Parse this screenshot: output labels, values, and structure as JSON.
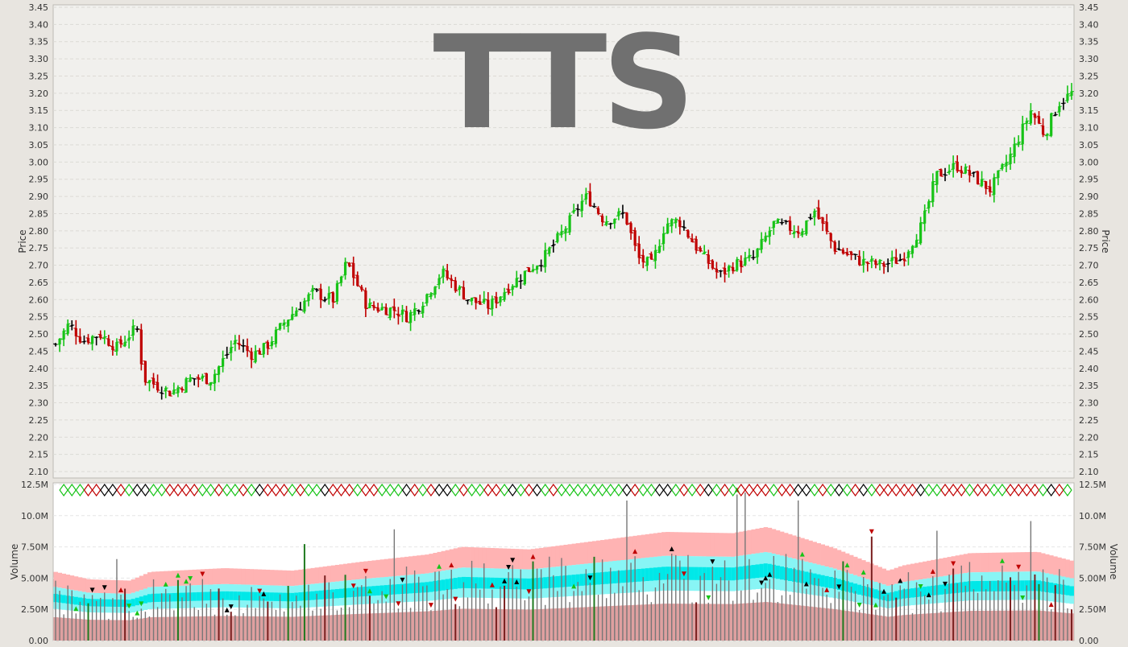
{
  "watermark": "TTS",
  "colors": {
    "background": "#e8e5e0",
    "plot_bg": "#f1f0ed",
    "up": "#17c317",
    "down": "#c00000",
    "neutral": "#000000",
    "band_outer": "#ffb3b3",
    "band_mid": "#88f5f5",
    "band_inner": "#00e8e8",
    "volume_base": "#dfa0a0",
    "volume_bar": "#777777",
    "watermark": "#707070"
  },
  "chart_data": [
    {
      "type": "ohlc",
      "title": "TTS",
      "ylabel": "Price",
      "ylim": [
        2.08,
        3.45
      ],
      "ticks": [
        "2.10",
        "2.15",
        "2.20",
        "2.25",
        "2.30",
        "2.35",
        "2.40",
        "2.45",
        "2.50",
        "2.55",
        "2.60",
        "2.65",
        "2.70",
        "2.75",
        "2.80",
        "2.85",
        "2.90",
        "2.95",
        "3.00",
        "3.05",
        "3.10",
        "3.15",
        "3.20",
        "3.25",
        "3.30",
        "3.35",
        "3.40",
        "3.45"
      ],
      "grid": true,
      "bar_count": 250,
      "anchors": [
        [
          0,
          2.47
        ],
        [
          4,
          2.53
        ],
        [
          8,
          2.48
        ],
        [
          13,
          2.5
        ],
        [
          18,
          2.46
        ],
        [
          24,
          2.52
        ],
        [
          26,
          2.37
        ],
        [
          34,
          2.33
        ],
        [
          40,
          2.37
        ],
        [
          46,
          2.37
        ],
        [
          53,
          2.48
        ],
        [
          58,
          2.44
        ],
        [
          62,
          2.46
        ],
        [
          68,
          2.54
        ],
        [
          76,
          2.62
        ],
        [
          82,
          2.6
        ],
        [
          86,
          2.71
        ],
        [
          92,
          2.58
        ],
        [
          100,
          2.57
        ],
        [
          104,
          2.55
        ],
        [
          108,
          2.59
        ],
        [
          114,
          2.68
        ],
        [
          122,
          2.6
        ],
        [
          128,
          2.58
        ],
        [
          134,
          2.64
        ],
        [
          140,
          2.69
        ],
        [
          144,
          2.72
        ],
        [
          150,
          2.8
        ],
        [
          155,
          2.88
        ],
        [
          157,
          2.9
        ],
        [
          162,
          2.83
        ],
        [
          168,
          2.85
        ],
        [
          172,
          2.72
        ],
        [
          176,
          2.7
        ],
        [
          180,
          2.82
        ],
        [
          184,
          2.83
        ],
        [
          190,
          2.74
        ],
        [
          196,
          2.67
        ],
        [
          200,
          2.7
        ],
        [
          206,
          2.72
        ],
        [
          212,
          2.82
        ],
        [
          220,
          2.8
        ],
        [
          224,
          2.86
        ],
        [
          230,
          2.75
        ],
        [
          238,
          2.71
        ],
        [
          244,
          2.7
        ],
        [
          250,
          2.72
        ],
        [
          256,
          2.82
        ],
        [
          260,
          2.96
        ],
        [
          266,
          2.99
        ],
        [
          272,
          2.95
        ],
        [
          276,
          2.92
        ],
        [
          282,
          3.02
        ],
        [
          288,
          3.15
        ],
        [
          292,
          3.08
        ],
        [
          296,
          3.17
        ],
        [
          300,
          3.2
        ]
      ]
    },
    {
      "type": "bar",
      "ylabel": "Volume",
      "ylim": [
        0,
        12.5
      ],
      "unit": "M",
      "ticks": [
        "0.00",
        "2.50M",
        "5.00M",
        "7.50M",
        "10.0M",
        "12.5M"
      ],
      "grid": true,
      "band_anchors": [
        [
          0,
          5.5
        ],
        [
          10,
          4.9
        ],
        [
          22,
          4.8
        ],
        [
          28,
          5.5
        ],
        [
          50,
          5.8
        ],
        [
          70,
          5.6
        ],
        [
          90,
          6.3
        ],
        [
          110,
          6.9
        ],
        [
          120,
          7.5
        ],
        [
          140,
          7.3
        ],
        [
          160,
          8.0
        ],
        [
          180,
          8.7
        ],
        [
          200,
          8.6
        ],
        [
          210,
          9.1
        ],
        [
          230,
          7.4
        ],
        [
          246,
          5.6
        ],
        [
          250,
          6.0
        ],
        [
          270,
          7.0
        ],
        [
          290,
          7.1
        ],
        [
          300,
          6.4
        ]
      ]
    }
  ]
}
